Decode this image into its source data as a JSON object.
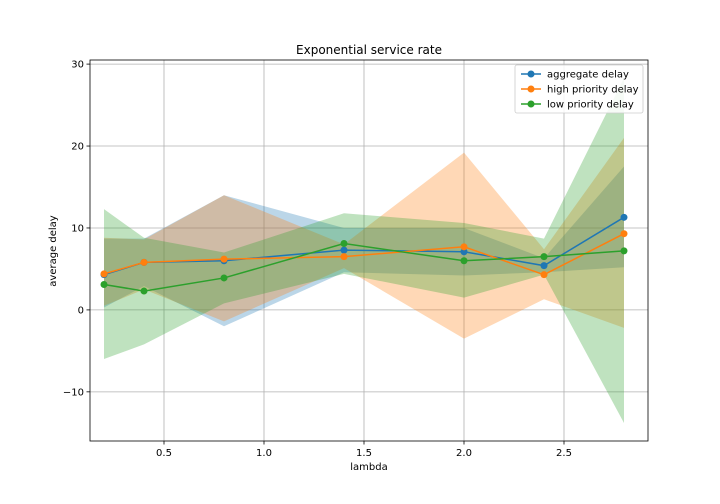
{
  "chart_data": {
    "type": "line",
    "title": "Exponential service rate",
    "xlabel": "lambda",
    "ylabel": "average delay",
    "xlim": [
      0.13,
      2.92
    ],
    "ylim": [
      -16,
      30.5
    ],
    "xticks": [
      0.5,
      1.0,
      1.5,
      2.0,
      2.5
    ],
    "xtick_labels": [
      "0.5",
      "1.0",
      "1.5",
      "2.0",
      "2.5"
    ],
    "yticks": [
      -10,
      0,
      10,
      20,
      30
    ],
    "ytick_labels": [
      "−10",
      "0",
      "10",
      "20",
      "30"
    ],
    "grid": true,
    "legend_position": "top-right",
    "x": [
      0.2,
      0.4,
      0.8,
      1.4,
      2.0,
      2.4,
      2.8
    ],
    "series": [
      {
        "name": "aggregate delay",
        "color": "#1f77b4",
        "values": [
          4.3,
          5.8,
          6.0,
          7.3,
          7.1,
          5.4,
          11.3
        ],
        "lower": [
          0.3,
          2.9,
          -2.0,
          4.6,
          4.2,
          4.6,
          5.2
        ],
        "upper": [
          8.7,
          8.7,
          14.0,
          10.0,
          10.0,
          6.3,
          17.5
        ]
      },
      {
        "name": "high priority delay",
        "color": "#ff7f0e",
        "values": [
          4.4,
          5.8,
          6.2,
          6.5,
          7.7,
          4.3,
          9.3
        ],
        "lower": [
          0.5,
          2.5,
          -1.4,
          5.1,
          -3.5,
          1.3,
          -2.2
        ],
        "upper": [
          8.8,
          8.6,
          14.0,
          8.0,
          19.2,
          7.4,
          21.0
        ]
      },
      {
        "name": "low priority delay",
        "color": "#2ca02c",
        "values": [
          3.1,
          2.3,
          3.9,
          8.1,
          6.0,
          6.5,
          7.2
        ],
        "lower": [
          -6.0,
          -4.2,
          0.8,
          4.4,
          1.5,
          4.3,
          -13.8
        ],
        "upper": [
          12.3,
          8.8,
          7.0,
          11.8,
          10.6,
          8.7,
          28.3
        ]
      }
    ]
  }
}
